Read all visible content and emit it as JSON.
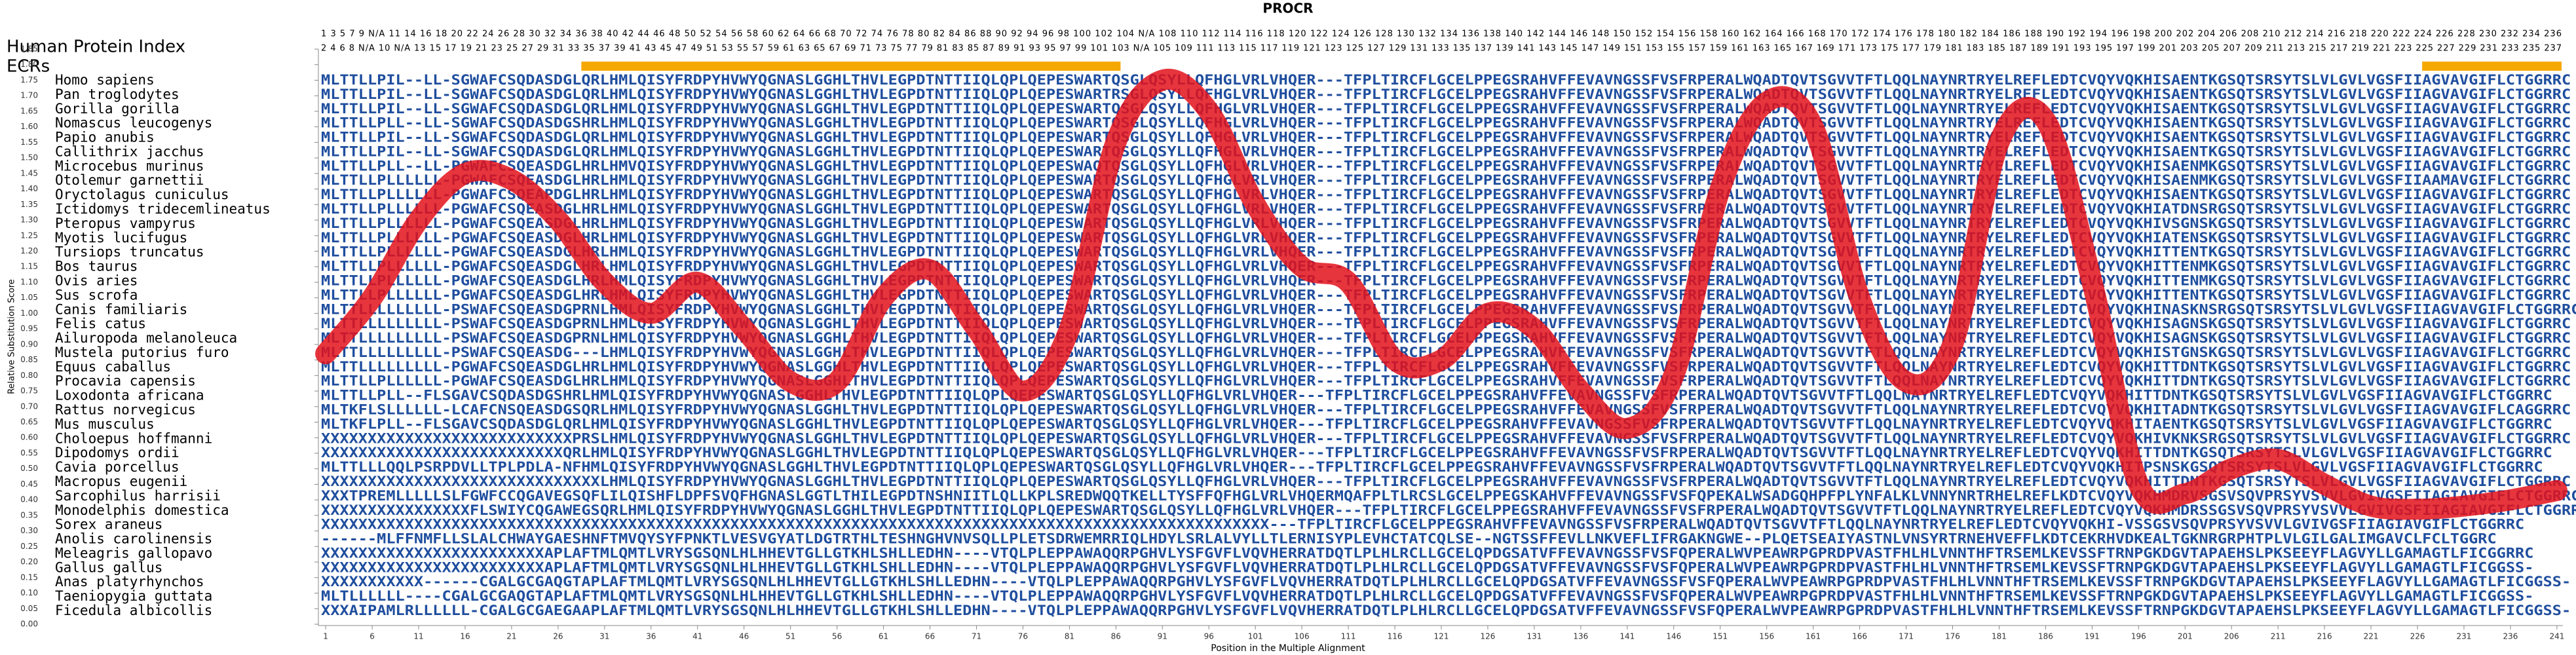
{
  "chart_data": {
    "type": "line",
    "title": "PROCR",
    "xlabel": "Position in the Multiple Alignment",
    "ylabel": "Relative Substitution Score",
    "color": "#e3121b",
    "xlim": [
      0.5,
      241.5
    ],
    "ylim": [
      0,
      1.85
    ],
    "xticks": [
      1,
      6,
      11,
      16,
      21,
      26,
      31,
      36,
      41,
      46,
      51,
      56,
      61,
      66,
      71,
      76,
      81,
      86,
      91,
      96,
      101,
      106,
      111,
      116,
      121,
      126,
      131,
      136,
      141,
      146,
      151,
      156,
      161,
      166,
      171,
      176,
      181,
      186,
      191,
      196,
      201,
      206,
      211,
      216,
      221,
      226,
      231,
      236,
      241
    ],
    "yticks": [
      {
        "value": 0,
        "label": "0.00"
      },
      {
        "value": 0.05,
        "label": "0.05"
      },
      {
        "value": 0.1,
        "label": "0.10"
      },
      {
        "value": 0.15,
        "label": "0.15"
      },
      {
        "value": 0.2,
        "label": "0.20"
      },
      {
        "value": 0.25,
        "label": "0.25"
      },
      {
        "value": 0.3,
        "label": "0.30"
      },
      {
        "value": 0.35,
        "label": "0.35"
      },
      {
        "value": 0.4,
        "label": "0.40"
      },
      {
        "value": 0.45,
        "label": "0.45"
      },
      {
        "value": 0.5,
        "label": "0.50"
      },
      {
        "value": 0.55,
        "label": "0.55"
      },
      {
        "value": 0.6,
        "label": "0.60"
      },
      {
        "value": 0.65,
        "label": "0.65"
      },
      {
        "value": 0.7,
        "label": "0.70"
      },
      {
        "value": 0.75,
        "label": "0.75"
      },
      {
        "value": 0.8,
        "label": "0.80"
      },
      {
        "value": 0.85,
        "label": "0.85"
      },
      {
        "value": 0.9,
        "label": "0.90"
      },
      {
        "value": 0.95,
        "label": "0.95"
      },
      {
        "value": 1,
        "label": "1.00"
      },
      {
        "value": 1.05,
        "label": "1.05"
      },
      {
        "value": 1.1,
        "label": "1.10"
      },
      {
        "value": 1.15,
        "label": "1.15"
      },
      {
        "value": 1.2,
        "label": "1.20"
      },
      {
        "value": 1.25,
        "label": "1.25"
      },
      {
        "value": 1.3,
        "label": "1.30"
      },
      {
        "value": 1.35,
        "label": "1.35"
      },
      {
        "value": 1.4,
        "label": "1.40"
      },
      {
        "value": 1.45,
        "label": "1.45"
      },
      {
        "value": 1.5,
        "label": "1.50"
      },
      {
        "value": 1.55,
        "label": "1.55"
      },
      {
        "value": 1.6,
        "label": "1.60"
      },
      {
        "value": 1.65,
        "label": "1.65"
      },
      {
        "value": 1.7,
        "label": "1.70"
      },
      {
        "value": 1.75,
        "label": "1.75"
      },
      {
        "value": 1.8,
        "label": "1.80"
      },
      {
        "value": 1.85,
        "label": "1.85"
      }
    ],
    "x": [
      1,
      6,
      11,
      16,
      21,
      26,
      31,
      36,
      41,
      46,
      51,
      56,
      61,
      66,
      71,
      76,
      81,
      86,
      91,
      96,
      101,
      106,
      111,
      116,
      121,
      126,
      131,
      136,
      141,
      146,
      151,
      156,
      161,
      166,
      171,
      176,
      181,
      186,
      191,
      196,
      201,
      206,
      211,
      216,
      221,
      226,
      231,
      236,
      241
    ],
    "values": [
      0.87,
      1.05,
      1.3,
      1.45,
      1.43,
      1.3,
      1.1,
      1.0,
      1.1,
      0.95,
      0.78,
      0.78,
      1.05,
      1.14,
      0.95,
      0.75,
      0.95,
      1.55,
      1.75,
      1.65,
      1.35,
      1.15,
      1.1,
      0.85,
      0.85,
      1.0,
      0.95,
      0.75,
      0.63,
      0.8,
      1.4,
      1.68,
      1.6,
      1.05,
      0.78,
      0.9,
      1.55,
      1.62,
      1.1,
      0.45,
      0.42,
      0.5,
      0.53,
      0.45,
      0.38,
      0.37,
      0.38,
      0.4,
      0.43
    ],
    "index_label": "Human Protein Index",
    "ecr_label": "ECRs",
    "ecr_color": "#f5a800",
    "ecrs": [
      [
        29,
        86
      ],
      [
        227,
        241
      ]
    ],
    "position_rows": [
      "1 3 5 7 9 N/A 11 14 16 18 20 22 24 26 28 30 32 34 36 38 40 42 44 46 48 50 52 54 56 58 60 62 64 66 68 70 72 74 76 78 80 82 84 86 88 90 92 94 96 98 100 102 104 N/A 108 110 112 114 116 118 120 122 124 126 128 130 132 134 136 138 140 142 144 146 148 150 152 154 156 158 160 162 164 166 168 170 172 174 176 178 180 182 184 186 188 190 192 194 196 198 200 202 204 206 208 210 212 214 216 218 220 222 224 226 228 230 232 234 236",
      "2 4 6 8 N/A 10 N/A 13 15 17 19 21 23 25 27 29 31 33 35 37 39 41 43 45 47 49 51 53 55 57 59 61 63 65 67 69 71 73 75 77 79 81 83 85 87 89 91 93 95 97 99 101 103 N/A 105 109 111 113 115 117 119 121 123 125 127 129 131 133 135 137 139 141 143 145 147 149 151 153 155 157 159 161 163 165 167 169 171 173 175 177 179 181 183 185 187 189 191 193 195 197 199 201 203 205 207 209 211 213 215 217 219 221 223 225 227 229 231 233 235 237"
    ],
    "species": [
      "Homo sapiens",
      "Pan troglodytes",
      "Gorilla gorilla",
      "Nomascus leucogenys",
      "Papio anubis",
      "Callithrix jacchus",
      "Microcebus murinus",
      "Otolemur garnettii",
      "Oryctolagus cuniculus",
      "Ictidomys tridecemlineatus",
      "Pteropus vampyrus",
      "Myotis lucifugus",
      "Tursiops truncatus",
      "Bos taurus",
      "Ovis aries",
      "Sus scrofa",
      "Canis familiaris",
      "Felis catus",
      "Ailuropoda melanoleuca",
      "Mustela putorius furo",
      "Equus caballus",
      "Procavia capensis",
      "Loxodonta africana",
      "Rattus norvegicus",
      "Mus musculus",
      "Choloepus hoffmanni",
      "Dipodomys ordii",
      "Cavia porcellus",
      "Macropus eugenii",
      "Sarcophilus harrisii",
      "Monodelphis domestica",
      "Sorex araneus",
      "Anolis carolinensis",
      "Meleagris gallopavo",
      "Gallus gallus",
      "Anas platyrhynchos",
      "Taeniopygia guttata",
      "Ficedula albicollis"
    ],
    "sequences": [
      "MLTTLLPIL--LL-SGWAFCSQDASDGLQRLHMLQISYFRDPYHVWYQGNASLGGHLTHVLEGPDTNTTIIQLQPLQEPESWARTQSGLQSYLLQFHGLVRLVHQER---TFPLTIRCFLGCELPPEGSRAHVFFEVAVNGSSFVSFRPERALWQADTQVTSGVVTFTLQQLNAYNRTRYELREFLEDTCVQYVQKHISAENTKGSQTSRSYTSLVLGVLVGSFIIAGVAVGIFLCTGGRRC",
      "MLTTLLPIL--LL-SGWAFCSQDASDGLQRLHMLQISYFRDPYHVWYQGNASLGGHLTHVLEGPDTNTTIIQLQPLQEPESWARTRSGLQSYLLQFHGLVRLVHQER---TFPLTIRCFLGCELPPEGSRAHVFFEVAVNGSSFVSFRPERALWQADTQVTSGVVTFTLQQLNAYNRTRYELREFLEDTCVQYVQKHISAENTKGSQTSRSYTSLVLGVLVGSFIIAGVAVGIFLCTGGRRC",
      "MLTTLLPIL--LL-SGWAFCSQDASDGLQRLHMLQISYFRDPYHVWYQGNASLGGHLTHVLEGPDTNTTIIQLQPLQEPESWARTQSGLQSYLLQFHGLVRLVHQER---TFPLTIRCFLGCELPPEGSRAHVFFEVAVNGSSFVSFRPERALWQADTQVTSGVVTFTLQQLNAYNRTRYELREFLEDTCVQYVQKHISAENTKGSQTSRSYTSLVLGVLVGSFIIAGVAVGIFLCTGGRRC",
      "MLTTLLPLL--LL-SGWAFCSQDASDGSHRLHMLQISYFRDPYHVWYQGNASLGGHLTHVLEGPDTNTTIIQLQPLQEPESWARTQSGLQSYLLQFHGLVRLVHQER---TFPLTIRCFLGCELPPEGSRAHVFFEVAVNGSSFVSFRPERALWQADTQVTSGVVTFTLQQLNAYNRTRYELREFLEDTCVQYVQKHISAENTKGSQTSRSYTSLVLGVLVGSFIIAGVAVGIFLCTGGRRC",
      "MLTTLLPIL--LL-SGWAFCSQDASDGLQRLHMLQISYFRDPYHVWYQGNASLGGHLTHVLEGPDTNTTIIQLQPLQEPESWARTQSGLQSYLLQFHGLVRLVHQER---TFPLTIRCFLGCELPPEGSRAHVFFEVAVNGSSFVSFRPERALWQADTQVTSGVVTFTLQQLNAYNRTRYELREFLEDTCVQYVQKHISAENTKGSQTSRSYTSLVLGVLVGSFIIAGVAVGIFLCTGGRRC",
      "MLTTLLPIL--LL-SGWAFCSQDASDGLQRLHMLQISYFRDPYHVWYQGNASLGGHLTHVLEGPDTNTTIIQLQPLQEPESWARTQSGLQSYLLQFHGLVRLVHQER---TFPLTIRCFLGCELPPEGSRAHVFFEVAVNGSSFVSFRPERALWQADTQVTSGVVTFTLQQLNAYNRTRYELREFLEDTCVQYVQKHISAENTKGSQTSRSYTSLVLGVLVGSFIIAGVAVGIFLCTGGRRC",
      "MLTTLLPLL--LL-PGWAFCSQEASDGLHRLHMVQISYFRDPYHVWYQGNASLGGHLTHVLEGPDTNTTIIQLQPLQEPESWAQTQSGLQSYLLQFHGLVRLVHQER---TFPLTIRCFLGCELPPEGSRAHVFFEVAVNGSSFVSFRPERALWQADTQVTSGVVTFTLQQLNAYNRTRYELREFLEDTCVQYVQKHISAENMKGSQTSRSYTSLVLGVLVGSFIIAGVAVGIFLCTGGRRC",
      "MLTTLLPLLLLLL-PGWAFCSQEASDGLHRLHMLQISYFRDPYHVWYQGNASLGGHLTHVLEGPDTNTTIIQLQPLQEPESWARTQSGLQSYLLQFHGLVRLVHQER---TFPLTIRCFLGCELPPEGSRAHVFFEVAVNGSSFVSFRPERALWQADTQVTSGVVTFTLQQLNAYNRTRYELREFLEDTCVQYVQKHISAENMKGSQTSRSYTSLVLGVLVGSFIIAAMAVGIFLCTGGRRC",
      "MLTTLLPLLLLLL-PGWAFCSQEAPDGLHRLHMLQISYFRDPYHVWYQGNASLGGHLTHVLEGPDTNTTIIQLQPLQEPESWARTQSGLQSYLLQFHGLVRLVHQER---TFPLTIRCFLGCELPPEGSRAHVFFEVAVNGSSFVSFRPERALWQADTQVTSGVVTFTLQQLNAYNRTRYELREFLEDTCVQYVQKHISAENTKGSQTSRSYTSLVLGVLVGSFIIAGVAVGIFLCTGGRRC",
      "MLTTLLPLLLLLL-PGWAFCSQEASDGLHRLHMLQISYFRDPYHVWYQGNASLGGHLTHVLEGPDTNTTIIQLQPLQEPESWARTQSGLQSYLLQFHGLVRLVHQER---TFPLTIRCFLGCELPPEGSRAHVFFEVAVNGSSFVSFRPERALWQADTQVTSGVVTFTLQQLNAYNRTRYELREFLEDTCVQYVQKHIATDNSRGSQTSRSYTSLVLGVLVGSFIIAGVAVGIFLCTGGRRC",
      "MLTTLLPLLLLLL-PGWAFCSQEASDGLHRLHMLQISYFRDPYHVWYQGNASLGGHLTHVLEGPDTNTTIIQLQPLQEPESWARTQSGLQSYLLQFHGLVRLVHQER---TFPLTIRCFLGCELPPEGSRAHVFFEVAVNGSSFVSFRPERALWQADTQVTSGVVTFTLQQLNAYNRTRYELREFLEDTCVQYVQKHIVSGNSKGSQTSRSYTSLVLGVLVGSFIIAGVAVGIFLCTGGRRC",
      "MLTTLLPLLLLLL-PGWAFCSQEASDGLHRLHMLQISYFRDPYHVWYQGNASLGGHLTHVLEGPDTNTTIIQLQPLQEPESWARTQSGLQSYLLQFHGLVRLVHQER---TFPLTIRCFLGCELPPEGSRAHVFFEVAVNGSSFVSFRPERALWQADTQVTSGVVTFTLQQLNAYNRTRYELREFLEDTCVQYVQKHIATENSKGSQTSRSYTSLVLGVLVGSFIIAGVAVGIFLCTGGRRC",
      "MLTTLLPLLLLLL-PGWAFCSQEASDGLHRLHMLQISYFRDPYHVWYQGNASLGGHLTHVLEGPDTNTTIIQLQPLQEPESWARTQSGLQSYLLQFHGLVRLVHQER---TFPLTIRCFLGCELPPEGSRAHVFFEVAVNGSSFVSFRPERALWQADTQVTSGVVTFTLQQLNAYNRTRYELREFLEDTCVQYVQKHITTENTKGSQTSRSYTSLVLGVLVGSFIIAGVAVGIFLCTGGRRC",
      "MLTTLLPLLLLLL-PGWAFCSQEASDGLHRLHMLQISYFRDPYHVWYQGNASLGGHLTHVLEGPDTNTTIIQLQPLQEPESWARTQSGLQSYLLQFHGLVRLVHQER---TFPLTIRCFLGCELPPEGSRAHVFFEVAVNGSSFVSFRPERALWQADTQVTSGVVTFTLQQLNAYNRTRYELREFLEDTCVQYVQKHITTENMKGSQTSRSYTSLVLGVLVGSFIIAGVAVGIFLCTGGRRC",
      "MLTTLLPLLLLLL-PGWAFCSQEASDGLHRLHMLQISYFRDPYHVWYQGNASLGGHLTHVLEGPDTNTTIIQLQPLQEPESWARTQSGLQSYLLQFHGLVRLVHQER---TFPLTIRCFLGCELPPEGSRAHVFFEVAVNGSSFVSFRPERALWQADTQVTSGVVTFTLQQLNAYNRTRYELREFLEDTCVQYVQKHITTENMKGSQTSRSYTSLVLGVLVGSFIIAGVAVGIFLCTGGRRC",
      "MLTTLLPLLLLLL-PGWAFCSQEASDGLHRLHMLQISYFRDPYHVWYQGNASLGGHLTHVLEGPDTNTTIIQLQPLQEPESWARTQSGLQSYLLQFHGLVRLVHQER---TFPLTIRCFLGCELPPEGSRAHVFFEVAVNGSSFVSFRPERALWQADTQVTSGVVTFTLQQLNAYNRTRYELREFLEDTCVQYVQKHITTENTKGSQTSRSYTSLVLGVLVGSFIIAGVAVGIFLCTGGRRC",
      "MLTTLLLLLLLLL-PSWAFCSQEASDGPRNLHMLQISYFRDPYHVWYQGNASLGGHLTHVLEGPDTNTTIIQLQPLQEPESWARTQSGLQSYLLQFHGLVRLVHQER---TFPLTIRCFLGCELPPEGSRAHVFFEVAVNGSSFVSFRPERALWQADTQVTSGVVTFTLQQLNAYNRTRYELREFLEDTCVQYVQKHINASKNSRGSQTSRSYTSLVLGVLVGSFIIAGVAVGIFLCTGGRRC",
      "MLTTLLLLLLLLL-PSWAFCSQEASDGPRNLHMLQISYFRDPYHVWYQGNASLGGHLTHVLEGPDTNTTIIQLQPLQEPESWARTQSGLQSYLLQFHGLVRLVHQER---TFPLTIRCFLGCELPPEGSRAHVFFEVAVNGSSFVSFRPERALWQADTQVTSGVVTFTLQQLNAYNRTRYELREFLEDTCVQYVQKHISAGNSKGSQTSRSYTSLVLGVLVGSFIIAGVAVGIFLCTGGRRC",
      "MLTTLLLLLLLLL-PSWAFCSQEASDGPRNLHMLQISYFRDPYHVWYQGNASLGGHLTHVLEGPDTNTTIIQLQPLQEPESWARTQSGLQSYLLQFHGLVRLVHQER---TFPLTIRCFLGCELPPEGSRAHVFFEVAVNGSSFVSFRPERALWQADTQVTSGVVTFTLQQLNAYNRTRYELREFLEDTCVQYVQKHISAGNSKGSQTSRSYTSLVLGVLVGSFIIAGVAVGIFLCTGGRRC",
      "MLTTLLLLLLLLL-PSWAFCSQEASDG---LHMLQISYFRDPYHVWYQGNASLGGHLTHVLEGPDTNTTIIQLQPLQEPESWARTQSGLQSYLLQFHGLVRLVHQER---TFPLTIRCFLGCELPPEGSRAHVFFEVAVNGSSFVSFRPERALWQADTQVTSGVVTFTLQQLNAYNRTRYELREFLEDTCVQYVQKHISTGNSKGSQTSRSYTSLVLGVLVGSFIIAGVAVGIFLCTGGRRC",
      "MLTTLLLLLLLLL-PGWAFCSQEASDGLHRLHMLQISYFRDPYHVWYQGNASLGGHLTHVLEGPDTNTTIIQLQPLQEPESWARTQSGLQSYLLQFHGLVRLVHQER---TFPLTIRCFLGCELPPEGSRAHVFFEVAVNGSSFVSFRPERALWQADTQVTSGVVTFTLQQLNAYNRTRYELREFLEDTCVQYVQKHITTDNTKGSQTSRSYTSLVLGVLVGSFIIAGVAVGIFLCTGGRRC",
      "MLTTLLPLLLLLL-PGWAFCSQEASDGLHRLHMLQISYFRDPYHVWYQGNASLGGHLTHVLEGPDTNTTIIQLQPLQEPESWARTQSGLQSYLLQFHGLVRLVHQER---TFPLTIRCFLGCELPPEGSRAHVFFEVAVNGSSFVSFRPERALWQADTQVTSGVVTFTLQQLNAYNRTRYELREFLEDTCVQYVQKHITTDNTKGSQTSRSYTSLVLGVLVGSFIIAGVAVGIFLCTGGRRC",
      "MLTTLLPLL--FLSGAVCSQDASDGSHRLHMLQISYFRDPYHVWYQGNASLGGHLTHVLEGPDTNTTIIQLQPLQEPESWARTQSGLQSYLLQFHGLVRLVHQER---TFPLTIRCFLGCELPPEGSRAHVFFEVAVNGSSFVSFRPERALWQADTQVTSGVVTFTLQQLNAYNRTRYELREFLEDTCVQYVQKHITTDNTKGSQTSRSYTSLVLGVLVGSFIIAGVAVGIFLCTGGRRC",
      "MLTKFLSLLLLLL-LCAFCNSQEASDGSQRLHMLQISYFRDPYHVWYQGNASLGGHLTHVLEGPDTNTTIIQLQPLQEPESWARTQSGLQSYLLQFHGLVRLVHQER---TFPLTIRCFLGCELPPEGSRAHVFFEVAVNGSSFVSFRPERALWQADTQVTSGVVTFTLQQLNAYNRTRYELREFLEDTCVQYVQKHITADNTKGSQTSRSYTSLVLGVLVGSFIIAGVAVGIFLCAGGRRC",
      "MLTKFLPLL--FLSGAVCSQDASDGLQRLHMLQISYFRDPYHVWYQGNASLGGHLTHVLEGPDTNTTIIQLQPLQEPESWARTQSGLQSYLLQFHGLVRLVHQER---TFPLTIRCFLGCELPPEGSRAHVFFEVAVNGSSFVSFRPERALWQADTQVTSGVVTFTLQQLNAYNRTRYELREFLEDTCVQYVQKHITAENTKGSQTSRSYTSLVLGVLVGSFIIAGVAVGIFLCTGGRRC",
      "XXXXXXXXXXXXXXXXXXXXXXXXXXXPRSLHMLQISYFRDPYHVWYQGNASLGGHLTHVLEGPDTNTTIIQLQPLQEPESWARTQSGLQSYLLQFHGLVRLVHQER---TFPLTIRCFLGCELPPEGSRAHVFFEVAVNGSSFVSFRPERALWQADTQVTSGVVTFTLQQLNAYNRTRYELREFLEDTCVQYVQKHIVKNKSRGSQTSRSYTSLVLGVLVGSFIIAGVAVGIFLCTGGRRC",
      "XXXXXXXXXXXXXXXXXXXXXXXXXXQRLHMLQISYFRDPYHVWYQGNASLGGHLTHVLEGPDTNTTIIQLQPLQEPESWARTQSGLQSYLLQFHGLVRLVHQER---TFPLTIRCFLGCELPPEGSRAHVFFEVAVNGSSFVSFRPERALWQADTQVTSGVVTFTLQQLNAYNRTRYELREFLEDTCVQYVQKHITTDNTKGSQTSRSYTSLVLGVLVGSFIIAGVAVGIFLCTGGRRC",
      "MLTTLLLQQLPSRPDVLLTPLPDLA-NFHMLQISYFRDPYHVWYQGNASLGGHLTHVLEGPDTNTTIIQLQPLQEPESWARTQSGLQSYLLQFHGLVRLVHQER---TFPLTIRCFLGCELPPEGSRAHVFFEVAVNGSSFVSFRPERALWQADTQVTSGVVTFTLQQLNAYNRTRYELREFLEDTCVQYVQKHITPSNSKGSQTSRSYTSLVLGVLVGSFIIAGVAVGIFLCTGGRRC",
      "XXXXXXXXXXXXXXXXXXXXXXXXXXXXXXLHMLQISYFRDPYHVWYQGNASLGGHLTHVLEGPDTNTTIIQLQPLQEPESWARTQSGLQSYLLQFHGLVRLVHQER---TFPLTIRCFLGCELPPEGSRAHVFFEVAVNGSSFVSFRPERALWQADTQVTSGVVTFTLQQLNAYNRTRYELREFLEDTCVQYVQKHITTDNTKGSQTSRSYTSLVLGVLVGSFIIAGVAVGIFLCTGGRRC",
      "XXXTPREMLLLLLSLFGWFCCQGAVEGSQFLILQISHFLDPFSVQFHGNASLGGTLTHILEGPDTNSHNIITLQLLKPLSREDWQQTKELLTYSFFQFHGLVRLVHQERMQAFPLTLRCSLGCELPPEGSKAHVFFEVAVNGSSFVSFQPEKALWSADGQHPFPLYNFALKLVNNYNRTRHELREFLKDTCVQYVQKHMDRVSGSVSQVPRSYVSVVLGVIVGSFIIAGIAVGIFLCTGGRRC",
      "XXXXXXXXXXXXXXXXFLSWIYCQGAWEGSQRLHMLQISYFRDPYHVWYQGNASLGGHLTHVLEGPDTNTTIIQLQPLQEPESWARTQSGLQSYLLQFHGLVRLVHQER---TFPLTIRCFLGCELPPEGSRAHVFFEVAVNGSSFVSFRPERALWQADTQVTSGVVTFTLQQLNAYNRTRYELREFLEDTCVQYVQKHMDRSSGSVSQVPRSYVSVVLGVIVGSFIIAGIAVGIFLCTGGRRC",
      "XXXXXXXXXXXXXXXXXXXXXXXXXXXXXXXXXXXXXXXXXXXXXXXXXXXXXXXXXXXXXXXXXXXXXXXXXXXXXXXXXXXXXXXXXXXXXXXXXXXXXX---TFPLTIRCFLGCELPPEGSRAHVFFEVAVNGSSFVSFRPERALWQADTQVTSGVVTFTLQQLNAYNRTRYELREFLEDTCVQYVQKHI-VSSGSVSQVPRSYVSVVLGVIVGSFIIAGIAVGIFLCTGGRRC",
      "------MLFFNMFLLSLALCHWAYGAESHNFTMVQYSYFPNKTLVESVGYATLDGTRTHLTESHNGHVNVSQLLPLETSDRWEMRRIQLHDYLSRLALVYLLTLERNISYPLEVHCTATCQLSE--NGTSSFFEVLLNKVEFLIFRGAKNGWE--PLQETSEAIYASTNLVNSYRTRNEHVEFFLKDTCEKRHVDKEALTGKNRGRPHTPLVLGILGALIMGAVCLFCLTGGRC",
      "XXXXXXXXXXXXXXXXXXXXXXXXAPLAFTMLQMTLVRYSGSQNLHLHHEVTGLLGTKHLSHLLEDHN----VTQLPLEPPAWAQQRPGHVLYSFGVFLVQVHERRATDQTLPLHLRCLLGCELQPDGSATVFFEVAVNGSSFVSFQPERALWVPEAWRPGPRDPVASTFHLHLVNNTHFTRSEMLKEVSSFTRNPGKDGVTAPAEHSLPKSEEYFLAGVYLLGAMAGTLFICGGRRC",
      "XXXXXXXXXXXXXXXXXXXXXXXXAPLAFTMLQMTLVRYSGSQNLHLHHEVTGLLGTKHLSHLLEDHN----VTQLPLEPPAWAQQRPGHVLYSFGVFLVQVHERRATDQTLPLHLRCLLGCELQPDGSATVFFEVAVNGSSFVSFQPERALWVPEAWRPGPRDPVASTFHLHLVNNTHFTRSEMLKEVSSFTRNPGKDGVTAPAEHSLPKSEEYFLAGVYLLGAMAGTLFICGGSS-",
      "XXXXXXXXXXX------CGALGCGAQGTAPLAFTMLQMTLVRYSGSQNLHLHHEVTGLLGTKHLSHLLEDHN----VTQLPLEPPAWAQQRPGHVLYSFGVFLVQVHERRATDQTLPLHLRCLLGCELQPDGSATVFFEVAVNGSSFVSFQPERALWVPEAWRPGPRDPVASTFHLHLVNNTHFTRSEMLKEVSSFTRNPGKDGVTAPAEHSLPKSEEYFLAGVYLLGAMAGTLFICGGSS-",
      "MLTLLLLLL----CGALGCGAQGTAPLAFTMLQMTLVRYSGSQNLHLHHEVTGLLGTKHLSHLLEDHN----VTQLPLEPPAWAQQRPGHVLYSFGVFLVQVHERRATDQTLPLHLRCLLGCELQPDGSATVFFEVAVNGSSFVSFQPERALWVPEAWRPGPRDPVASTFHLHLVNNTHFTRSEMLKEVSSFTRNPGKDGVTAPAEHSLPKSEEYFLAGVYLLGAMAGTLFICGGSS-",
      "XXXAIPAMLRLLLLLL-CGALGCGAEGAAPLAFTMLQMTLVRYSGSQNLHLHHEVTGLLGTKHLSHLLEDHN----VTQLPLEPPAWAQQRPGHVLYSFGVFLVQVHERRATDQTLPLHLRCLLGCELQPDGSATVFFEVAVNGSSFVSFQPERALWVPEAWRPGPRDPVASTFHLHLVNNTHFTRSEMLKEVSSFTRNPGKDGVTAPAEHSLPKSEEYFLAGVYLLGAMAGTLFICGGSS-"
    ]
  }
}
